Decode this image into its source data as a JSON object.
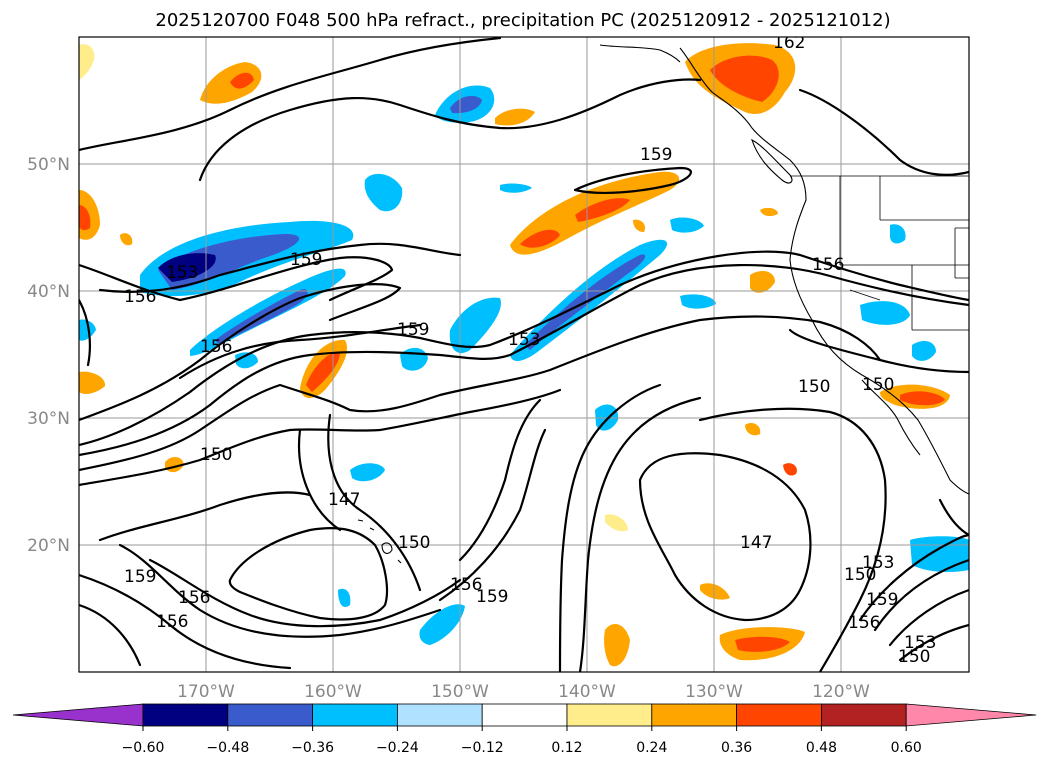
{
  "title": "2025120700 F048 500 hPa refract., precipitation PC (2025120912 - 2025121012)",
  "map": {
    "lat_range": [
      10,
      60
    ],
    "lon_range": [
      -180,
      -110
    ],
    "lat_ticks": [
      {
        "value": 20,
        "label": "20°N"
      },
      {
        "value": 30,
        "label": "30°N"
      },
      {
        "value": 40,
        "label": "40°N"
      },
      {
        "value": 50,
        "label": "50°N"
      }
    ],
    "lon_ticks": [
      {
        "value": -170,
        "label": "170°W"
      },
      {
        "value": -160,
        "label": "160°W"
      },
      {
        "value": -150,
        "label": "150°W"
      },
      {
        "value": -140,
        "label": "140°W"
      },
      {
        "value": -130,
        "label": "130°W"
      },
      {
        "value": -120,
        "label": "120°W"
      }
    ],
    "grid": true
  },
  "contour_labels": [
    "162",
    "159",
    "159",
    "156",
    "153",
    "156",
    "159",
    "156",
    "153",
    "150",
    "150",
    "150",
    "147",
    "150",
    "156",
    "159",
    "159",
    "156",
    "156",
    "147",
    "150",
    "153",
    "159",
    "156",
    "153",
    "150"
  ],
  "colorbar": {
    "extend": "both",
    "colors": [
      "#9932cc",
      "#000080",
      "#3a5bcc",
      "#00bfff",
      "#b0e2ff",
      "#ffffff",
      "#ffec8b",
      "#ffa500",
      "#ff4500",
      "#b22222",
      "#ff88aa"
    ],
    "tick_labels": [
      "−0.60",
      "−0.48",
      "−0.36",
      "−0.24",
      "−0.12",
      "0.12",
      "0.24",
      "0.36",
      "0.48",
      "0.60"
    ]
  }
}
